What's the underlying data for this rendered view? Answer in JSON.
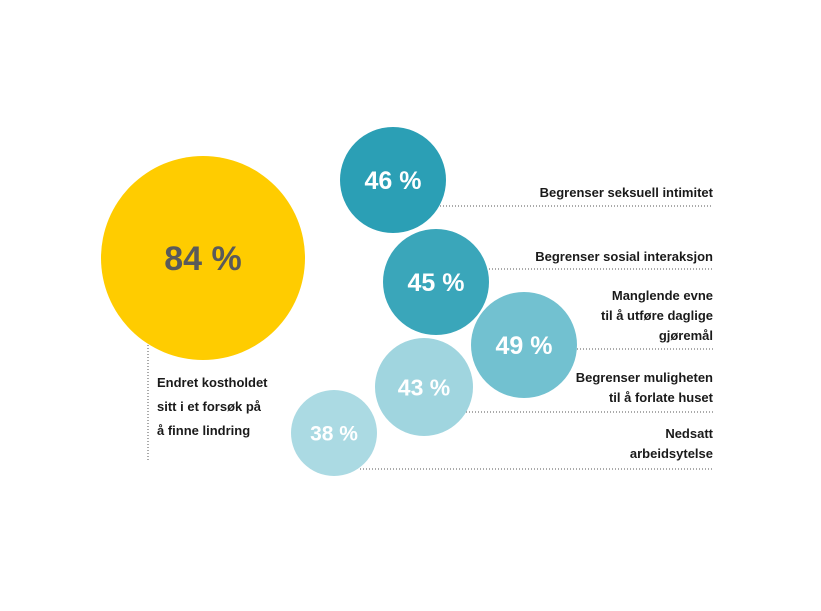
{
  "chart_data": {
    "type": "bubble",
    "main": {
      "value": 84,
      "display": "84 %",
      "label_lines": [
        "Endret kostholdet",
        "sitt i et forsøk på",
        "å finne lindring"
      ],
      "color": "#FFCC00"
    },
    "items": [
      {
        "value": 46,
        "display": "46 %",
        "label_lines": [
          "Begrenser seksuell intimitet"
        ],
        "color": "#2B9FB5"
      },
      {
        "value": 45,
        "display": "45 %",
        "label_lines": [
          "Begrenser sosial interaksjon"
        ],
        "color": "#3AA6BA"
      },
      {
        "value": 49,
        "display": "49 %",
        "label_lines": [
          "Manglende evne",
          "til å utføre daglige",
          "gjøremål"
        ],
        "color": "#72C1D0"
      },
      {
        "value": 43,
        "display": "43 %",
        "label_lines": [
          "Begrenser muligheten",
          "til å forlate huset"
        ],
        "color": "#A0D5DF"
      },
      {
        "value": 38,
        "display": "38 %",
        "label_lines": [
          "Nedsatt",
          "arbeidsytelse"
        ],
        "color": "#ABDAE3"
      }
    ]
  }
}
